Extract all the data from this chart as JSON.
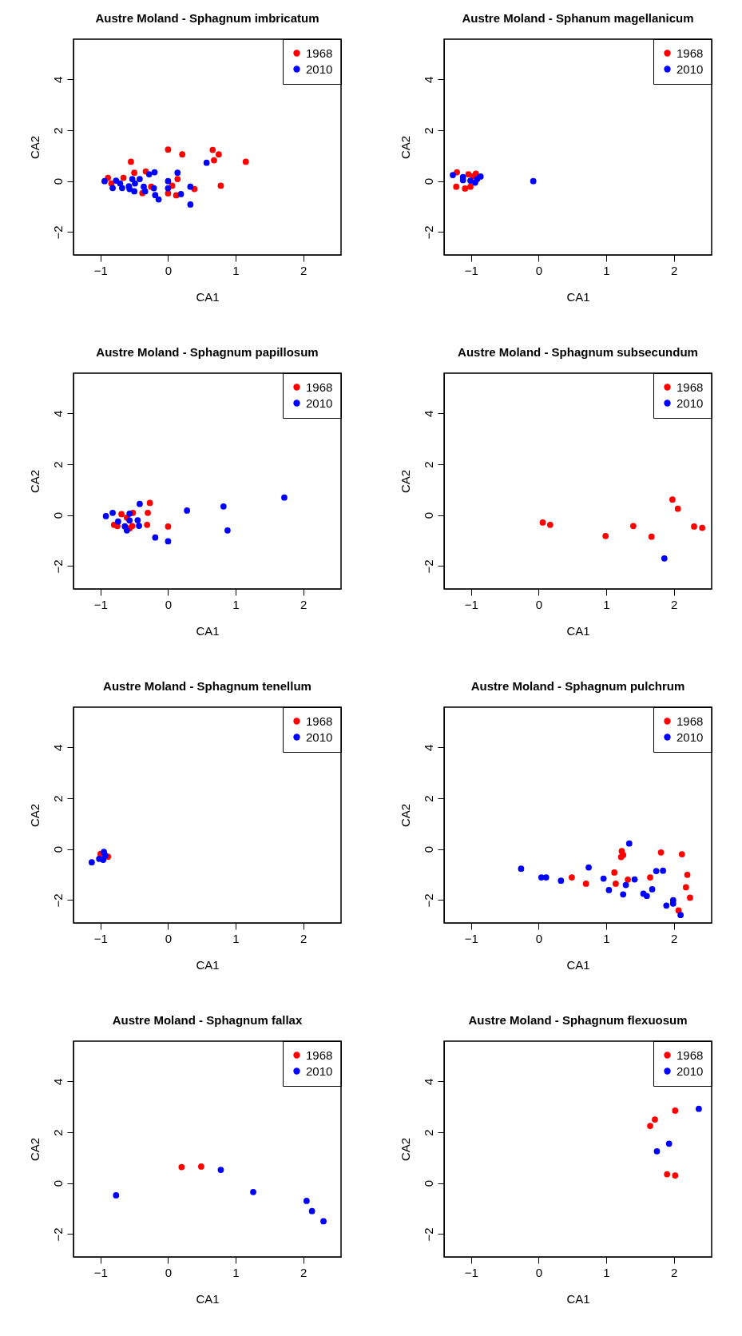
{
  "chart_data": [
    {
      "type": "scatter",
      "title": "Austre Moland - Sphagnum imbricatum",
      "xlabel": "CA1",
      "ylabel": "CA2",
      "xlim": [
        -1.4,
        2.56
      ],
      "ylim": [
        -2.9,
        5.58
      ],
      "xticks": [
        -1,
        0,
        1,
        2
      ],
      "yticks": [
        -2,
        0,
        2,
        4
      ],
      "grid": false,
      "legend": "top right",
      "marker": "circle",
      "series": [
        {
          "name": "1968",
          "color": "#ff0000",
          "x": [
            0.0,
            0.21,
            0.66,
            0.75,
            0.68,
            1.15,
            -0.55,
            -0.5,
            -0.33,
            -0.66,
            -0.89,
            -0.84,
            0.14,
            0.06,
            0.78,
            0.0,
            0.12,
            0.39,
            -0.38,
            -0.25
          ],
          "values": [
            1.24,
            1.05,
            1.23,
            1.05,
            0.82,
            0.76,
            0.76,
            0.33,
            0.38,
            0.13,
            0.13,
            -0.09,
            0.08,
            -0.18,
            -0.18,
            -0.48,
            -0.56,
            -0.31,
            -0.47,
            -0.22
          ]
        },
        {
          "name": "2010",
          "color": "#0000ff",
          "x": [
            -0.94,
            -0.82,
            -0.77,
            -0.71,
            -0.68,
            -0.58,
            -0.53,
            -0.49,
            -0.5,
            -0.57,
            -0.42,
            -0.36,
            -0.34,
            -0.28,
            -0.2,
            -0.21,
            -0.19,
            -0.14,
            0.0,
            0.0,
            0.14,
            0.19,
            0.33,
            0.33,
            0.57
          ],
          "values": [
            0.0,
            -0.27,
            0.02,
            -0.09,
            -0.27,
            -0.2,
            0.08,
            -0.09,
            -0.4,
            -0.31,
            0.08,
            -0.22,
            -0.4,
            0.27,
            0.35,
            -0.28,
            -0.55,
            -0.72,
            0.0,
            -0.28,
            0.33,
            -0.51,
            -0.22,
            -0.92,
            0.72
          ]
        }
      ]
    },
    {
      "type": "scatter",
      "title": "Austre Moland  - Sphanum magellanicum",
      "xlabel": "CA1",
      "ylabel": "CA2",
      "xlim": [
        -1.4,
        2.56
      ],
      "ylim": [
        -2.9,
        5.58
      ],
      "xticks": [
        -1,
        0,
        1,
        2
      ],
      "yticks": [
        -2,
        0,
        2,
        4
      ],
      "grid": false,
      "legend": "top right",
      "marker": "circle",
      "series": [
        {
          "name": "1968",
          "color": "#ff0000",
          "x": [
            -1.21,
            -1.22,
            -1.09,
            -1.01,
            -1.04,
            -0.93,
            -0.97
          ],
          "values": [
            0.35,
            -0.22,
            -0.29,
            -0.22,
            0.27,
            0.29,
            0.19
          ]
        },
        {
          "name": "2010",
          "color": "#0000ff",
          "x": [
            -1.27,
            -1.12,
            -1.12,
            -1.01,
            -0.94,
            -0.91,
            -0.86,
            -0.08
          ],
          "values": [
            0.24,
            0.16,
            0.04,
            0.02,
            -0.06,
            0.08,
            0.18,
            0.0
          ]
        }
      ]
    },
    {
      "type": "scatter",
      "title": "Austre Moland  - Sphagnum papillosum",
      "xlabel": "CA1",
      "ylabel": "CA2",
      "xlim": [
        -1.4,
        2.56
      ],
      "ylim": [
        -2.9,
        5.58
      ],
      "xticks": [
        -1,
        0,
        1,
        2
      ],
      "yticks": [
        -2,
        0,
        2,
        4
      ],
      "grid": false,
      "legend": "top right",
      "marker": "circle",
      "series": [
        {
          "name": "1968",
          "color": "#ff0000",
          "x": [
            -0.27,
            -0.3,
            -0.31,
            0.0,
            -0.69,
            -0.52,
            -0.8,
            -0.75,
            -0.53,
            -0.61,
            -0.57
          ],
          "values": [
            0.48,
            0.09,
            -0.38,
            -0.45,
            0.04,
            0.09,
            -0.38,
            -0.43,
            -0.43,
            -0.1,
            -0.52
          ]
        },
        {
          "name": "2010",
          "color": "#0000ff",
          "x": [
            -0.92,
            -0.82,
            -0.74,
            -0.57,
            -0.57,
            -0.64,
            -0.61,
            -0.45,
            -0.43,
            -0.42,
            -0.19,
            0.0,
            0.28,
            0.82,
            0.88,
            1.72
          ],
          "values": [
            -0.04,
            0.09,
            -0.25,
            0.06,
            -0.21,
            -0.44,
            -0.6,
            -0.2,
            -0.42,
            0.44,
            -0.88,
            -1.03,
            0.18,
            0.34,
            -0.6,
            0.69
          ]
        }
      ]
    },
    {
      "type": "scatter",
      "title": "Austre Moland  - Sphagnum subsecundum",
      "xlabel": "CA1",
      "ylabel": "CA2",
      "xlim": [
        -1.4,
        2.56
      ],
      "ylim": [
        -2.9,
        5.58
      ],
      "xticks": [
        -1,
        0,
        1,
        2
      ],
      "yticks": [
        -2,
        0,
        2,
        4
      ],
      "grid": false,
      "legend": "top right",
      "marker": "circle",
      "series": [
        {
          "name": "1968",
          "color": "#ff0000",
          "x": [
            0.06,
            0.17,
            0.99,
            1.4,
            1.67,
            1.98,
            2.06,
            2.3,
            2.42
          ],
          "values": [
            -0.29,
            -0.38,
            -0.82,
            -0.43,
            -0.85,
            0.61,
            0.25,
            -0.45,
            -0.5
          ]
        },
        {
          "name": "2010",
          "color": "#0000ff",
          "x": [
            1.86
          ],
          "values": [
            -1.7
          ]
        }
      ]
    },
    {
      "type": "scatter",
      "title": "Austre Moland  - Sphagnum tenellum",
      "xlabel": "CA1",
      "ylabel": "CA2",
      "xlim": [
        -1.4,
        2.56
      ],
      "ylim": [
        -2.9,
        5.58
      ],
      "xticks": [
        -1,
        0,
        1,
        2
      ],
      "yticks": [
        -2,
        0,
        2,
        4
      ],
      "grid": false,
      "legend": "top right",
      "marker": "circle",
      "series": [
        {
          "name": "1968",
          "color": "#ff0000",
          "x": [
            -0.89,
            -1.0
          ],
          "values": [
            -0.3,
            -0.19
          ]
        },
        {
          "name": "2010",
          "color": "#0000ff",
          "x": [
            -1.13,
            -1.02,
            -0.95,
            -0.96,
            -0.93
          ],
          "values": [
            -0.52,
            -0.38,
            -0.11,
            -0.42,
            -0.25
          ]
        }
      ]
    },
    {
      "type": "scatter",
      "title": "Austre Moland  - Sphagnum pulchrum",
      "xlabel": "CA1",
      "ylabel": "CA2",
      "xlim": [
        -1.4,
        2.56
      ],
      "ylim": [
        -2.9,
        5.58
      ],
      "xticks": [
        -1,
        0,
        1,
        2
      ],
      "yticks": [
        -2,
        0,
        2,
        4
      ],
      "grid": false,
      "legend": "top right",
      "marker": "circle",
      "series": [
        {
          "name": "1968",
          "color": "#ff0000",
          "x": [
            0.49,
            0.7,
            1.12,
            1.14,
            1.23,
            1.22,
            1.25,
            1.32,
            1.65,
            1.81,
            2.12,
            2.2,
            2.18,
            2.24,
            2.07
          ],
          "values": [
            -1.11,
            -1.36,
            -0.92,
            -1.36,
            -0.08,
            -0.31,
            -0.23,
            -1.2,
            -1.11,
            -0.13,
            -0.2,
            -1.01,
            -1.5,
            -1.91,
            -2.41
          ]
        },
        {
          "name": "2010",
          "color": "#0000ff",
          "x": [
            -0.26,
            0.04,
            0.11,
            0.33,
            0.74,
            0.96,
            1.04,
            1.25,
            1.29,
            1.34,
            1.42,
            1.55,
            1.6,
            1.68,
            1.74,
            1.84,
            1.89,
            1.99,
            1.99,
            2.1
          ],
          "values": [
            -0.77,
            -1.11,
            -1.11,
            -1.24,
            -0.72,
            -1.16,
            -1.61,
            -1.78,
            -1.41,
            0.22,
            -1.19,
            -1.75,
            -1.84,
            -1.58,
            -0.86,
            -0.85,
            -2.22,
            -2.01,
            -2.14,
            -2.59
          ]
        }
      ]
    },
    {
      "type": "scatter",
      "title": "Austre Moland  - Sphagnum fallax",
      "xlabel": "CA1",
      "ylabel": "CA2",
      "xlim": [
        -1.4,
        2.56
      ],
      "ylim": [
        -2.9,
        5.58
      ],
      "xticks": [
        -1,
        0,
        1,
        2
      ],
      "yticks": [
        -2,
        0,
        2,
        4
      ],
      "grid": false,
      "legend": "top right",
      "marker": "circle",
      "series": [
        {
          "name": "1968",
          "color": "#ff0000",
          "x": [
            0.2,
            0.49
          ],
          "values": [
            0.63,
            0.65
          ]
        },
        {
          "name": "2010",
          "color": "#0000ff",
          "x": [
            -0.77,
            0.78,
            1.26,
            2.05,
            2.13,
            2.3
          ],
          "values": [
            -0.48,
            0.52,
            -0.35,
            -0.7,
            -1.1,
            -1.5
          ]
        }
      ]
    },
    {
      "type": "scatter",
      "title": "Austre Moland  - Sphagnum flexuosum",
      "xlabel": "CA1",
      "ylabel": "CA2",
      "xlim": [
        -1.4,
        2.56
      ],
      "ylim": [
        -2.9,
        5.58
      ],
      "xticks": [
        -1,
        0,
        1,
        2
      ],
      "yticks": [
        -2,
        0,
        2,
        4
      ],
      "grid": false,
      "legend": "top right",
      "marker": "circle",
      "series": [
        {
          "name": "1968",
          "color": "#ff0000",
          "x": [
            1.65,
            1.72,
            2.02,
            1.9,
            2.02
          ],
          "values": [
            2.25,
            2.5,
            2.85,
            0.35,
            0.3
          ]
        },
        {
          "name": "2010",
          "color": "#0000ff",
          "x": [
            2.37,
            1.93,
            1.75
          ],
          "values": [
            2.92,
            1.55,
            1.25
          ]
        }
      ]
    }
  ]
}
